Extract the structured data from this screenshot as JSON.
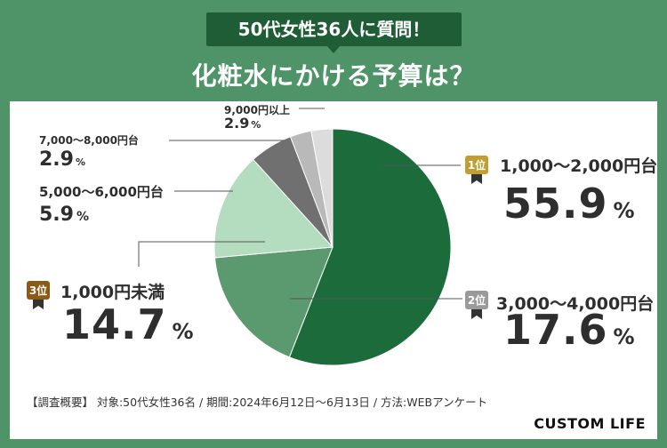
{
  "header": {
    "badge": "50代女性36人に質問！",
    "title": "化粧水にかける予算は？"
  },
  "chart_data": {
    "type": "pie",
    "title": "化粧水にかける予算は？",
    "unit": "%",
    "slices": [
      {
        "label": "1,000〜2,000円台",
        "value": 55.9,
        "rank": "1位",
        "color": "#1c6b3a"
      },
      {
        "label": "3,000〜4,000円台",
        "value": 17.6,
        "rank": "2位",
        "color": "#5b9a6e"
      },
      {
        "label": "1,000円未満",
        "value": 14.7,
        "rank": "3位",
        "color": "#b4dcbf"
      },
      {
        "label": "5,000〜6,000円台",
        "value": 5.9,
        "rank": "",
        "color": "#707070"
      },
      {
        "label": "7,000〜8,000円台",
        "value": 2.9,
        "rank": "",
        "color": "#b9b9b9"
      },
      {
        "label": "9,000円以上",
        "value": 2.9,
        "rank": "",
        "color": "#dcdcdc"
      }
    ]
  },
  "labels": {
    "pct": "%",
    "rank1": "1位",
    "rank2": "2位",
    "rank3": "3位",
    "s1_name": "1,000〜2,000円台",
    "s1_val": "55.9",
    "s2_name": "3,000〜4,000円台",
    "s2_val": "17.6",
    "s3_name": "1,000円未満",
    "s3_val": "14.7",
    "s4_name": "5,000〜6,000円台",
    "s4_val": "5.9",
    "s5_name": "7,000〜8,000円台",
    "s5_val": "2.9",
    "s6_name": "9,000円以上",
    "s6_val": "2.9"
  },
  "footer": {
    "survey": "【調査概要】 対象:50代女性36名 / 期間:2024年6月12日〜6月13日 / 方法:WEBアンケート",
    "brand": "CUSTOM LIFE"
  }
}
